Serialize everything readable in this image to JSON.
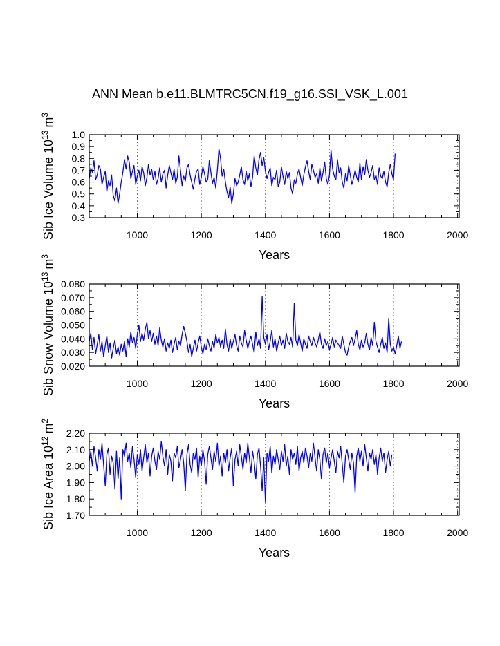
{
  "title": "ANN Mean b.e11.BLMTRC5CN.f19_g16.SSI_VSK_L.001",
  "colors": {
    "line": "#0000ff",
    "axis": "#000000",
    "grid": "#555555"
  },
  "chart_data": [
    {
      "type": "line",
      "ylabel": "Sib Ice Volume 10",
      "ylabel_exp": "13",
      "ylabel_unit": "m",
      "ylabel_unit_exp": "3",
      "xlabel": "Years",
      "xlim": [
        850,
        2005
      ],
      "ylim": [
        0.3,
        1.0
      ],
      "yticks": [
        "0.3",
        "0.4",
        "0.5",
        "0.6",
        "0.7",
        "0.8",
        "0.9",
        "1.0"
      ],
      "xticks": [
        "1000",
        "1200",
        "1400",
        "1600",
        "1800",
        "2000"
      ],
      "grid_x": [
        1000,
        1200,
        1400,
        1600,
        1800,
        2000
      ],
      "series": [
        {
          "start_year": 850,
          "step_years": 5,
          "values": [
            0.63,
            0.72,
            0.68,
            0.78,
            0.62,
            0.66,
            0.74,
            0.71,
            0.58,
            0.64,
            0.69,
            0.52,
            0.61,
            0.57,
            0.66,
            0.49,
            0.44,
            0.55,
            0.42,
            0.5,
            0.6,
            0.68,
            0.79,
            0.71,
            0.82,
            0.77,
            0.63,
            0.69,
            0.74,
            0.58,
            0.65,
            0.7,
            0.61,
            0.73,
            0.68,
            0.57,
            0.64,
            0.75,
            0.66,
            0.71,
            0.62,
            0.69,
            0.58,
            0.63,
            0.72,
            0.6,
            0.67,
            0.7,
            0.55,
            0.66,
            0.74,
            0.68,
            0.62,
            0.71,
            0.59,
            0.64,
            0.82,
            0.7,
            0.57,
            0.65,
            0.61,
            0.72,
            0.75,
            0.66,
            0.6,
            0.54,
            0.63,
            0.69,
            0.71,
            0.58,
            0.64,
            0.73,
            0.67,
            0.6,
            0.62,
            0.78,
            0.68,
            0.59,
            0.64,
            0.55,
            0.7,
            0.88,
            0.8,
            0.65,
            0.71,
            0.6,
            0.52,
            0.47,
            0.56,
            0.42,
            0.5,
            0.63,
            0.57,
            0.6,
            0.66,
            0.73,
            0.62,
            0.58,
            0.69,
            0.61,
            0.67,
            0.56,
            0.64,
            0.82,
            0.72,
            0.66,
            0.79,
            0.85,
            0.74,
            0.81,
            0.69,
            0.63,
            0.68,
            0.72,
            0.57,
            0.64,
            0.62,
            0.7,
            0.56,
            0.6,
            0.73,
            0.65,
            0.58,
            0.69,
            0.63,
            0.68,
            0.55,
            0.5,
            0.62,
            0.59,
            0.67,
            0.71,
            0.64,
            0.57,
            0.66,
            0.73,
            0.78,
            0.69,
            0.62,
            0.75,
            0.7,
            0.64,
            0.67,
            0.59,
            0.72,
            0.61,
            0.68,
            0.77,
            0.63,
            0.58,
            0.66,
            0.87,
            0.71,
            0.65,
            0.62,
            0.79,
            0.68,
            0.72,
            0.6,
            0.55,
            0.67,
            0.61,
            0.74,
            0.66,
            0.58,
            0.63,
            0.7,
            0.64,
            0.6,
            0.76,
            0.62,
            0.73,
            0.66,
            0.79,
            0.7,
            0.64,
            0.68,
            0.74,
            0.62,
            0.66,
            0.58,
            0.72,
            0.65,
            0.63,
            0.69,
            0.6,
            0.56,
            0.68,
            0.75,
            0.67,
            0.62,
            0.84
          ]
        }
      ]
    },
    {
      "type": "line",
      "ylabel": "Sib Snow Volume 10",
      "ylabel_exp": "13",
      "ylabel_unit": "m",
      "ylabel_unit_exp": "3",
      "xlabel": "Years",
      "xlim": [
        850,
        2005
      ],
      "ylim": [
        0.02,
        0.08
      ],
      "yticks": [
        "0.020",
        "0.030",
        "0.040",
        "0.050",
        "0.060",
        "0.070",
        "0.080"
      ],
      "xticks": [
        "1000",
        "1200",
        "1400",
        "1600",
        "1800",
        "2000"
      ],
      "grid_x": [
        1000,
        1200,
        1400,
        1600,
        1800,
        2000
      ],
      "series": [
        {
          "start_year": 850,
          "step_years": 5,
          "values": [
            0.038,
            0.044,
            0.032,
            0.041,
            0.029,
            0.036,
            0.043,
            0.031,
            0.038,
            0.027,
            0.035,
            0.042,
            0.03,
            0.037,
            0.026,
            0.033,
            0.039,
            0.029,
            0.034,
            0.028,
            0.036,
            0.031,
            0.038,
            0.027,
            0.04,
            0.034,
            0.045,
            0.037,
            0.041,
            0.033,
            0.043,
            0.05,
            0.038,
            0.044,
            0.039,
            0.047,
            0.052,
            0.04,
            0.046,
            0.038,
            0.044,
            0.036,
            0.042,
            0.035,
            0.048,
            0.039,
            0.034,
            0.04,
            0.031,
            0.037,
            0.033,
            0.039,
            0.03,
            0.036,
            0.041,
            0.032,
            0.038,
            0.035,
            0.043,
            0.049,
            0.044,
            0.038,
            0.03,
            0.036,
            0.027,
            0.033,
            0.039,
            0.031,
            0.037,
            0.042,
            0.034,
            0.029,
            0.036,
            0.032,
            0.04,
            0.035,
            0.031,
            0.038,
            0.033,
            0.043,
            0.037,
            0.041,
            0.034,
            0.039,
            0.033,
            0.047,
            0.036,
            0.031,
            0.04,
            0.033,
            0.038,
            0.043,
            0.035,
            0.031,
            0.042,
            0.037,
            0.034,
            0.046,
            0.039,
            0.033,
            0.038,
            0.042,
            0.036,
            0.03,
            0.045,
            0.035,
            0.04,
            0.033,
            0.071,
            0.041,
            0.036,
            0.043,
            0.032,
            0.038,
            0.046,
            0.034,
            0.04,
            0.031,
            0.037,
            0.042,
            0.035,
            0.039,
            0.033,
            0.044,
            0.038,
            0.036,
            0.041,
            0.034,
            0.066,
            0.039,
            0.035,
            0.043,
            0.037,
            0.031,
            0.04,
            0.036,
            0.033,
            0.042,
            0.038,
            0.035,
            0.041,
            0.037,
            0.034,
            0.039,
            0.045,
            0.036,
            0.033,
            0.04,
            0.035,
            0.038,
            0.032,
            0.036,
            0.041,
            0.034,
            0.039,
            0.037,
            0.035,
            0.033,
            0.042,
            0.036,
            0.03,
            0.028,
            0.034,
            0.038,
            0.041,
            0.035,
            0.04,
            0.046,
            0.036,
            0.032,
            0.039,
            0.034,
            0.037,
            0.044,
            0.036,
            0.032,
            0.041,
            0.035,
            0.052,
            0.038,
            0.034,
            0.03,
            0.036,
            0.041,
            0.033,
            0.037,
            0.03,
            0.055,
            0.036,
            0.031,
            0.034,
            0.029,
            0.035,
            0.042,
            0.033,
            0.038
          ]
        }
      ]
    },
    {
      "type": "line",
      "ylabel": "Sib Ice Area 10",
      "ylabel_exp": "12",
      "ylabel_unit": "m",
      "ylabel_unit_exp": "2",
      "xlabel": "Years",
      "xlim": [
        850,
        2005
      ],
      "ylim": [
        1.7,
        2.2
      ],
      "yticks": [
        "1.70",
        "1.80",
        "1.90",
        "2.00",
        "2.10",
        "2.20"
      ],
      "xticks": [
        "1000",
        "1200",
        "1400",
        "1600",
        "1800",
        "2000"
      ],
      "grid_x": [
        1000,
        1200,
        1400,
        1600,
        1800,
        2000
      ],
      "series": [
        {
          "start_year": 850,
          "step_years": 5,
          "values": [
            2.03,
            2.09,
            2.0,
            2.12,
            2.05,
            1.97,
            2.1,
            2.04,
            2.14,
            2.01,
            1.88,
            2.07,
            2.11,
            1.95,
            2.06,
            2.02,
            1.86,
            2.09,
            1.92,
            2.05,
            1.8,
            2.1,
            2.06,
            2.14,
            2.03,
            2.08,
            1.99,
            2.12,
            2.04,
            1.93,
            2.07,
            2.01,
            2.1,
            1.97,
            2.05,
            2.13,
            2.02,
            2.08,
            1.94,
            2.06,
            2.11,
            2.03,
            1.98,
            2.09,
            2.04,
            2.15,
            2.06,
            2.0,
            2.1,
            1.95,
            2.07,
            2.03,
            1.91,
            2.08,
            2.05,
            2.12,
            1.99,
            2.04,
            2.1,
            2.02,
            1.85,
            2.07,
            2.13,
            2.01,
            1.96,
            2.08,
            2.04,
            2.11,
            1.93,
            2.06,
            2.0,
            2.1,
            2.03,
            1.89,
            2.07,
            2.12,
            2.05,
            1.98,
            2.09,
            2.03,
            2.14,
            2.0,
            2.06,
            1.94,
            2.08,
            2.02,
            2.1,
            1.97,
            2.05,
            2.11,
            1.88,
            2.04,
            2.09,
            2.0,
            2.13,
            2.06,
            1.98,
            2.08,
            2.02,
            2.14,
            2.05,
            1.96,
            2.09,
            2.03,
            1.92,
            2.07,
            2.11,
            2.0,
            1.85,
            2.05,
            1.78,
            2.08,
            2.03,
            2.12,
            1.96,
            2.06,
            2.01,
            2.1,
            2.04,
            1.98,
            2.09,
            2.03,
            2.13,
            2.0,
            2.06,
            1.95,
            2.1,
            2.04,
            2.08,
            2.01,
            2.12,
            1.97,
            2.05,
            2.09,
            2.02,
            2.11,
            2.06,
            1.99,
            2.08,
            2.03,
            2.14,
            2.05,
            1.97,
            2.1,
            2.04,
            1.92,
            2.07,
            2.11,
            2.02,
            2.08,
            1.99,
            2.05,
            2.1,
            2.03,
            1.96,
            2.09,
            2.05,
            2.12,
            2.01,
            1.9,
            2.06,
            2.1,
            2.04,
            1.98,
            2.08,
            2.02,
            1.84,
            2.06,
            2.11,
            2.03,
            2.09,
            2.0,
            2.13,
            2.05,
            1.97,
            2.08,
            2.04,
            2.1,
            2.01,
            2.07,
            1.95,
            2.05,
            2.11,
            2.03,
            2.08,
            1.96,
            2.04,
            2.09,
            2.0,
            2.07
          ]
        }
      ]
    }
  ]
}
